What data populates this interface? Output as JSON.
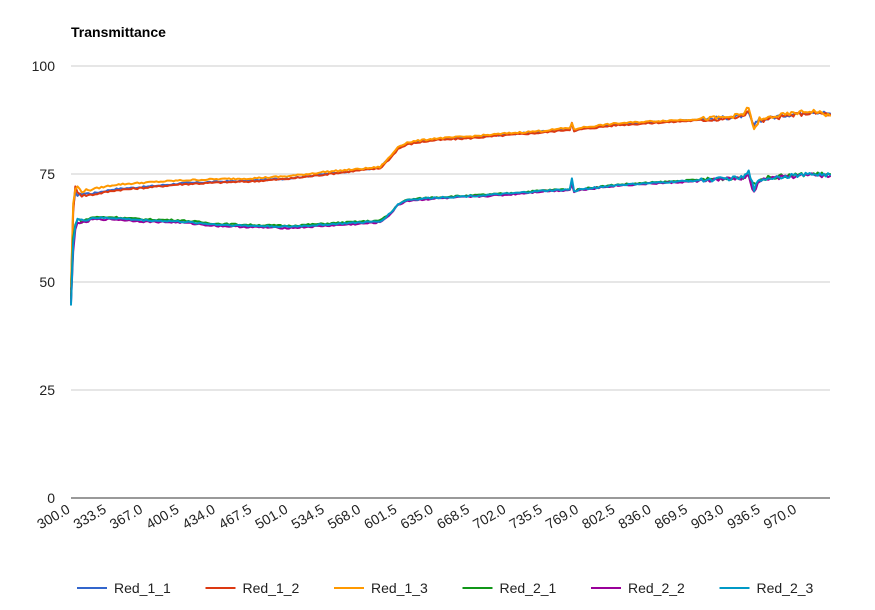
{
  "chart_data": {
    "type": "line",
    "title": "Transmittance",
    "xlabel": "",
    "ylabel": "",
    "xlim": [
      300,
      1000
    ],
    "ylim": [
      0,
      100
    ],
    "y_ticks": [
      0,
      25,
      50,
      75,
      100
    ],
    "x_tick_labels": [
      "300.0",
      "333.5",
      "367.0",
      "400.5",
      "434.0",
      "467.5",
      "501.0",
      "534.5",
      "568.0",
      "601.5",
      "635.0",
      "668.5",
      "702.0",
      "735.5",
      "769.0",
      "802.5",
      "836.0",
      "869.5",
      "903.0",
      "936.5",
      "970.0"
    ],
    "grid": true,
    "legend_position": "bottom",
    "x": [
      300,
      302,
      304,
      306,
      310,
      320,
      340,
      367,
      400.5,
      434,
      467.5,
      501,
      534.5,
      568,
      585,
      595,
      601.5,
      610,
      620,
      635,
      668.5,
      702,
      735.5,
      760,
      762,
      764,
      769,
      802.5,
      836,
      869.5,
      903,
      920,
      925,
      930,
      935,
      936.5,
      945,
      955,
      970,
      985,
      1000
    ],
    "series": [
      {
        "name": "Red_1_1",
        "color": "#3366cc",
        "values": [
          48,
          67,
          71,
          70,
          70.5,
          70.5,
          71.5,
          72,
          72.8,
          73.2,
          73.5,
          74,
          75,
          76,
          76.5,
          79,
          81,
          82,
          82.5,
          83,
          83.5,
          84.2,
          84.8,
          85.5,
          86.5,
          85,
          85.5,
          86.5,
          87,
          87.5,
          88,
          88.5,
          89,
          86,
          88,
          87.5,
          88,
          88.5,
          89,
          89.5,
          89
        ]
      },
      {
        "name": "Red_1_2",
        "color": "#dc3912",
        "values": [
          47,
          66,
          72,
          71,
          70,
          70.2,
          71.2,
          71.8,
          72.6,
          73,
          73.3,
          73.9,
          74.9,
          75.9,
          76.3,
          78.8,
          80.8,
          81.8,
          82.3,
          82.8,
          83.3,
          84,
          84.6,
          85.3,
          87,
          84.8,
          85.3,
          86.3,
          86.8,
          87.3,
          87.8,
          88.3,
          90,
          85.5,
          87.5,
          87.2,
          87.8,
          88.2,
          88.8,
          89.2,
          88.8
        ]
      },
      {
        "name": "Red_1_3",
        "color": "#ff9900",
        "values": [
          49,
          68,
          71.5,
          72,
          71,
          71.5,
          72.5,
          73,
          73.5,
          73.8,
          74,
          74.5,
          75.5,
          76.2,
          76.6,
          79.2,
          81.3,
          82.3,
          82.7,
          83.2,
          83.7,
          84.4,
          85,
          85.7,
          86.8,
          85.2,
          85.7,
          86.7,
          87.2,
          87.6,
          88.1,
          88.8,
          90.5,
          85,
          87.8,
          87.4,
          88.2,
          88.6,
          89.2,
          89.6,
          88.5
        ]
      },
      {
        "name": "Red_2_1",
        "color": "#109618",
        "values": [
          46,
          60,
          63.5,
          64.5,
          64,
          65,
          65,
          64.5,
          64.3,
          63.5,
          63.2,
          63,
          63.5,
          64,
          64.2,
          66,
          68,
          69,
          69.3,
          69.6,
          70,
          70.5,
          71.2,
          71.5,
          73,
          71,
          71.5,
          72.5,
          73,
          73.5,
          74,
          74.3,
          74.8,
          72.5,
          74,
          73.8,
          74.2,
          74.5,
          74.8,
          75,
          75
        ]
      },
      {
        "name": "Red_2_2",
        "color": "#990099",
        "values": [
          45,
          57,
          62,
          64,
          63.5,
          64.5,
          64.5,
          64,
          63.8,
          63,
          62.7,
          62.5,
          63,
          63.5,
          63.8,
          65.8,
          67.8,
          68.8,
          69,
          69.3,
          69.7,
          70.2,
          71,
          71.3,
          72.8,
          70.8,
          71.3,
          72.3,
          72.8,
          73.2,
          73.8,
          74,
          74.5,
          70.5,
          73.5,
          73.5,
          74,
          74.2,
          74.5,
          74.8,
          74.5
        ]
      },
      {
        "name": "Red_2_3",
        "color": "#0099c6",
        "values": [
          45,
          59,
          63,
          64.5,
          64.2,
          64.8,
          64.8,
          64.3,
          64,
          63.3,
          63,
          62.8,
          63.3,
          63.8,
          64,
          66,
          68,
          69,
          69.2,
          69.5,
          69.9,
          70.4,
          71.1,
          71.4,
          74,
          70.9,
          71.4,
          72.4,
          72.9,
          73.4,
          73.9,
          74.2,
          75.5,
          71.5,
          73.8,
          73.7,
          74.1,
          74.4,
          74.7,
          75,
          74.8
        ]
      }
    ]
  }
}
